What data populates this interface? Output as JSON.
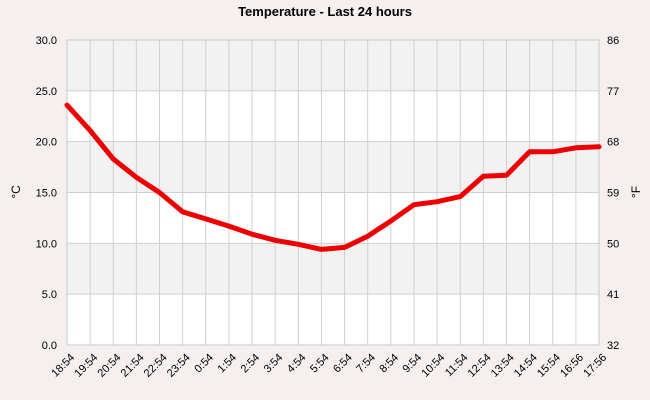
{
  "chart_data": {
    "type": "line",
    "title": "Temperature - Last 24 hours",
    "ylabel_left": "°C",
    "ylabel_right": "°F",
    "ylim": [
      0,
      30
    ],
    "y_ticks_left": [
      "0.0",
      "5.0",
      "10.0",
      "15.0",
      "20.0",
      "25.0",
      "30.0"
    ],
    "y_ticks_right": [
      "32",
      "41",
      "50",
      "59",
      "68",
      "77",
      "86"
    ],
    "x_tick_labels": [
      "18:54",
      "19:54",
      "20:54",
      "21:54",
      "22:54",
      "23:54",
      "0:54",
      "1:54",
      "2:54",
      "3:54",
      "4:54",
      "5:54",
      "6:54",
      "7:54",
      "8:54",
      "9:54",
      "10:54",
      "11:54",
      "12:54",
      "13:54",
      "14:54",
      "15:54",
      "16:56",
      "17:56"
    ],
    "grid": true,
    "background_bands": [
      "#f2f2f2",
      "#ffffff"
    ],
    "line_color": "#ee0000",
    "series": [
      {
        "x": [
          "18:54",
          "19:54",
          "20:54",
          "21:54",
          "22:54",
          "23:54",
          "0:54",
          "1:54",
          "2:54",
          "3:54",
          "4:54",
          "5:54",
          "6:54",
          "7:54",
          "8:54",
          "9:54",
          "10:54",
          "11:54",
          "12:54",
          "13:54",
          "14:54",
          "15:54",
          "16:56",
          "17:56"
        ],
        "values": [
          23.6,
          21.1,
          18.3,
          16.5,
          15.0,
          13.1,
          12.4,
          11.7,
          10.9,
          10.3,
          9.9,
          9.4,
          9.6,
          10.7,
          12.2,
          13.8,
          14.1,
          14.6,
          16.6,
          16.7,
          19.0,
          19.0,
          19.4,
          19.5
        ]
      }
    ]
  }
}
